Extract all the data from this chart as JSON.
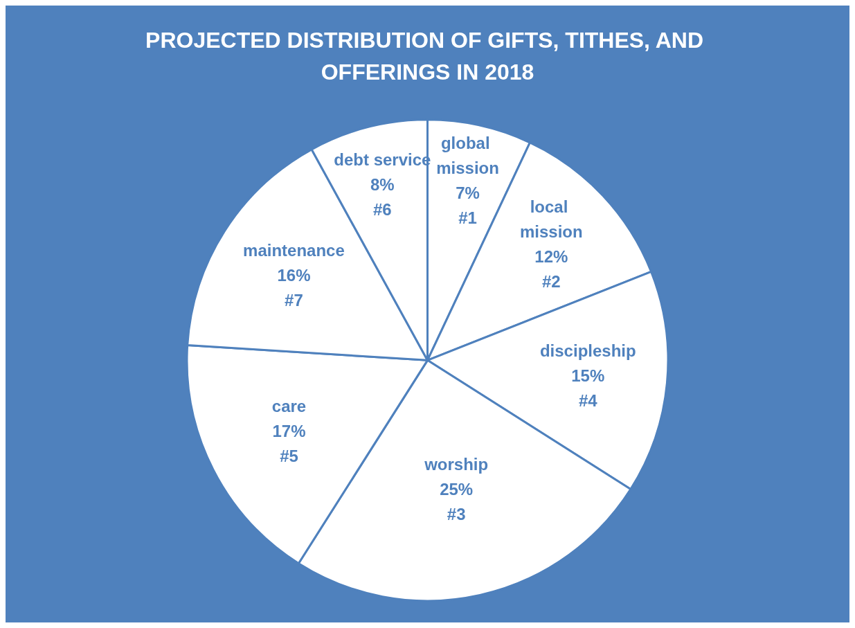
{
  "chart_data": {
    "type": "pie",
    "title": "PROJECTED DISTRIBUTION OF GIFTS, TITHES, AND OFFERINGS IN 2018",
    "categories": [
      "global mission",
      "local mission",
      "discipleship",
      "worship",
      "care",
      "maintenance",
      "debt service"
    ],
    "values": [
      7,
      12,
      15,
      25,
      17,
      16,
      8
    ],
    "value_labels": [
      "7%\n#1",
      "12%\n#2",
      "15%\n#4",
      "25%\n#3",
      "17%\n#5",
      "16%\n#7",
      "8%\n#6"
    ],
    "colors": [
      "#ffffff",
      "#ffffff",
      "#ffffff",
      "#ffffff",
      "#ffffff",
      "#ffffff",
      "#ffffff"
    ],
    "legend": false
  }
}
